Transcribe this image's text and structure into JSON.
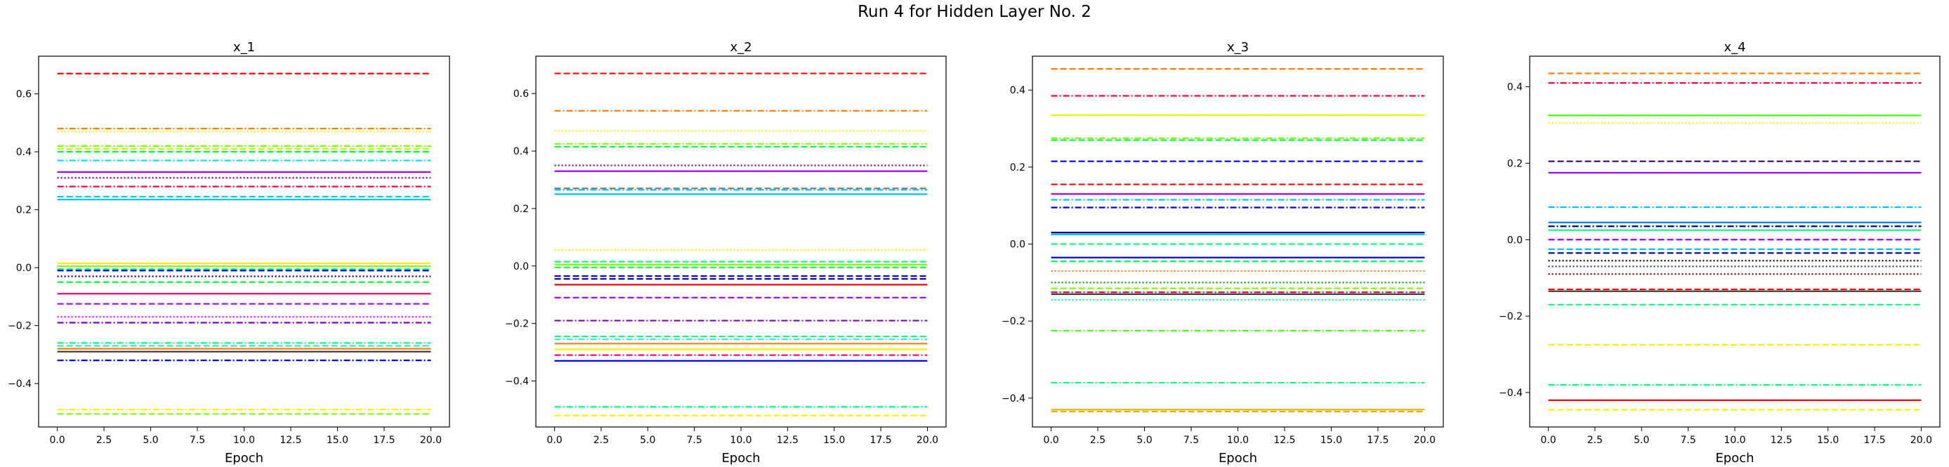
{
  "figure": {
    "title": "Run 4 for Hidden Layer No. 2"
  },
  "chart_data": [
    {
      "type": "line",
      "title": "x_1",
      "xlabel": "Epoch",
      "ylabel": "",
      "x_range": [
        0,
        20
      ],
      "xlim": [
        -1,
        21
      ],
      "ylim": [
        -0.55,
        0.73
      ],
      "xticks": [
        0.0,
        2.5,
        5.0,
        7.5,
        10.0,
        12.5,
        15.0,
        17.5,
        20.0
      ],
      "xtick_labels": [
        "0.0",
        "2.5",
        "5.0",
        "7.5",
        "10.0",
        "12.5",
        "15.0",
        "17.5",
        "20.0"
      ],
      "yticks": [
        -0.4,
        -0.2,
        0.0,
        0.2,
        0.4,
        0.6
      ],
      "ytick_labels": [
        "−0.4",
        "−0.2",
        "0.0",
        "0.2",
        "0.4",
        "0.6"
      ],
      "grid": false,
      "series": [
        {
          "value": 0.67,
          "color": "#ff0000",
          "dash": "dashed"
        },
        {
          "value": 0.48,
          "color": "#ff8000",
          "dash": "dashdot"
        },
        {
          "value": 0.47,
          "color": "#ffee00",
          "dash": "dotted"
        },
        {
          "value": 0.42,
          "color": "#80ff00",
          "dash": "dashdot"
        },
        {
          "value": 0.41,
          "color": "#c0ff00",
          "dash": "dashed"
        },
        {
          "value": 0.4,
          "color": "#00ff40",
          "dash": "dashed"
        },
        {
          "value": 0.37,
          "color": "#00e0ff",
          "dash": "dashdot"
        },
        {
          "value": 0.33,
          "color": "#a000ff",
          "dash": "solid"
        },
        {
          "value": 0.31,
          "color": "#800080",
          "dash": "dotted"
        },
        {
          "value": 0.28,
          "color": "#ff0040",
          "dash": "dashdot"
        },
        {
          "value": 0.245,
          "color": "#00c0ff",
          "dash": "dashed"
        },
        {
          "value": 0.235,
          "color": "#00bfff",
          "dash": "solid"
        },
        {
          "value": 0.015,
          "color": "#ffee00",
          "dash": "solid"
        },
        {
          "value": 0.005,
          "color": "#80ff00",
          "dash": "solid"
        },
        {
          "value": -0.005,
          "color": "#00ff80",
          "dash": "dashed"
        },
        {
          "value": -0.01,
          "color": "#0000ff",
          "dash": "dashed"
        },
        {
          "value": -0.03,
          "color": "#000080",
          "dash": "dotted"
        },
        {
          "value": -0.05,
          "color": "#00ff40",
          "dash": "dashed"
        },
        {
          "value": -0.09,
          "color": "#ff0060",
          "dash": "solid"
        },
        {
          "value": -0.125,
          "color": "#a000ff",
          "dash": "dashed"
        },
        {
          "value": -0.17,
          "color": "#ff00ff",
          "dash": "dotted"
        },
        {
          "value": -0.19,
          "color": "#8000c0",
          "dash": "dashdot"
        },
        {
          "value": -0.26,
          "color": "#00ff80",
          "dash": "dashdot"
        },
        {
          "value": -0.27,
          "color": "#40e0d0",
          "dash": "dashed"
        },
        {
          "value": -0.28,
          "color": "#ff8000",
          "dash": "solid"
        },
        {
          "value": -0.29,
          "color": "#404040",
          "dash": "solid"
        },
        {
          "value": -0.32,
          "color": "#0000ff",
          "dash": "dashdot"
        },
        {
          "value": -0.49,
          "color": "#ffee00",
          "dash": "dashdot"
        },
        {
          "value": -0.505,
          "color": "#80ff00",
          "dash": "dashed"
        }
      ]
    },
    {
      "type": "line",
      "title": "x_2",
      "xlabel": "Epoch",
      "ylabel": "",
      "x_range": [
        0,
        20
      ],
      "xlim": [
        -1,
        21
      ],
      "ylim": [
        -0.56,
        0.73
      ],
      "xticks": [
        0.0,
        2.5,
        5.0,
        7.5,
        10.0,
        12.5,
        15.0,
        17.5,
        20.0
      ],
      "xtick_labels": [
        "0.0",
        "2.5",
        "5.0",
        "7.5",
        "10.0",
        "12.5",
        "15.0",
        "17.5",
        "20.0"
      ],
      "yticks": [
        -0.4,
        -0.2,
        0.0,
        0.2,
        0.4,
        0.6
      ],
      "ytick_labels": [
        "−0.4",
        "−0.2",
        "0.0",
        "0.2",
        "0.4",
        "0.6"
      ],
      "grid": false,
      "series": [
        {
          "value": 0.67,
          "color": "#ff0000",
          "dash": "dashed"
        },
        {
          "value": 0.54,
          "color": "#ff8000",
          "dash": "dashdot"
        },
        {
          "value": 0.47,
          "color": "#ffee00",
          "dash": "dotted"
        },
        {
          "value": 0.425,
          "color": "#80ff00",
          "dash": "dashdot"
        },
        {
          "value": 0.415,
          "color": "#00ff40",
          "dash": "dashed"
        },
        {
          "value": 0.35,
          "color": "#800080",
          "dash": "dotted"
        },
        {
          "value": 0.33,
          "color": "#a000ff",
          "dash": "solid"
        },
        {
          "value": 0.27,
          "color": "#808080",
          "dash": "dashed"
        },
        {
          "value": 0.265,
          "color": "#00c0ff",
          "dash": "dashdot"
        },
        {
          "value": 0.25,
          "color": "#00bfff",
          "dash": "solid"
        },
        {
          "value": 0.055,
          "color": "#ffee00",
          "dash": "dotted"
        },
        {
          "value": 0.015,
          "color": "#00ff80",
          "dash": "dashed"
        },
        {
          "value": 0.005,
          "color": "#80ff00",
          "dash": "solid"
        },
        {
          "value": -0.005,
          "color": "#00ff40",
          "dash": "dashed"
        },
        {
          "value": -0.035,
          "color": "#0000ff",
          "dash": "dashed"
        },
        {
          "value": -0.045,
          "color": "#000080",
          "dash": "dashed"
        },
        {
          "value": -0.065,
          "color": "#ff0000",
          "dash": "solid"
        },
        {
          "value": -0.11,
          "color": "#a000ff",
          "dash": "dashed"
        },
        {
          "value": -0.19,
          "color": "#8000c0",
          "dash": "dashdot"
        },
        {
          "value": -0.245,
          "color": "#00ff80",
          "dash": "dashed"
        },
        {
          "value": -0.255,
          "color": "#40e0d0",
          "dash": "dashdot"
        },
        {
          "value": -0.27,
          "color": "#ff8000",
          "dash": "solid"
        },
        {
          "value": -0.29,
          "color": "#ffee00",
          "dash": "solid"
        },
        {
          "value": -0.31,
          "color": "#ff0060",
          "dash": "dashdot"
        },
        {
          "value": -0.33,
          "color": "#0000ff",
          "dash": "solid"
        },
        {
          "value": -0.49,
          "color": "#00ff80",
          "dash": "dashdot"
        },
        {
          "value": -0.52,
          "color": "#ffee00",
          "dash": "dashed"
        }
      ]
    },
    {
      "type": "line",
      "title": "x_3",
      "xlabel": "Epoch",
      "ylabel": "",
      "x_range": [
        0,
        20
      ],
      "xlim": [
        -1,
        21
      ],
      "ylim": [
        -0.475,
        0.488
      ],
      "xticks": [
        0.0,
        2.5,
        5.0,
        7.5,
        10.0,
        12.5,
        15.0,
        17.5,
        20.0
      ],
      "xtick_labels": [
        "0.0",
        "2.5",
        "5.0",
        "7.5",
        "10.0",
        "12.5",
        "15.0",
        "17.5",
        "20.0"
      ],
      "yticks": [
        -0.4,
        -0.2,
        0.0,
        0.2,
        0.4
      ],
      "ytick_labels": [
        "−0.4",
        "−0.2",
        "0.0",
        "0.2",
        "0.4"
      ],
      "grid": false,
      "series": [
        {
          "value": 0.455,
          "color": "#ff8000",
          "dash": "dashed"
        },
        {
          "value": 0.385,
          "color": "#ff0040",
          "dash": "dashdot"
        },
        {
          "value": 0.335,
          "color": "#e0ff00",
          "dash": "solid"
        },
        {
          "value": 0.275,
          "color": "#80ff00",
          "dash": "dashdot"
        },
        {
          "value": 0.27,
          "color": "#00ff40",
          "dash": "dashed"
        },
        {
          "value": 0.215,
          "color": "#0000ff",
          "dash": "dashed"
        },
        {
          "value": 0.155,
          "color": "#ff0000",
          "dash": "dashed"
        },
        {
          "value": 0.13,
          "color": "#a000ff",
          "dash": "solid"
        },
        {
          "value": 0.115,
          "color": "#00c0ff",
          "dash": "dashdot"
        },
        {
          "value": 0.095,
          "color": "#0000c0",
          "dash": "dashdot"
        },
        {
          "value": 0.03,
          "color": "#000080",
          "dash": "solid"
        },
        {
          "value": 0.025,
          "color": "#00bfff",
          "dash": "solid"
        },
        {
          "value": 0.0,
          "color": "#00ff80",
          "dash": "dashed"
        },
        {
          "value": -0.035,
          "color": "#0000ff",
          "dash": "solid"
        },
        {
          "value": -0.045,
          "color": "#00ff40",
          "dash": "dashed"
        },
        {
          "value": -0.07,
          "color": "#ff8000",
          "dash": "dotted"
        },
        {
          "value": -0.1,
          "color": "#00a000",
          "dash": "dotted"
        },
        {
          "value": -0.115,
          "color": "#80ff00",
          "dash": "dashed"
        },
        {
          "value": -0.125,
          "color": "#ff0040",
          "dash": "dashdot"
        },
        {
          "value": -0.13,
          "color": "#404040",
          "dash": "solid"
        },
        {
          "value": -0.145,
          "color": "#00ff80",
          "dash": "dotted"
        },
        {
          "value": -0.225,
          "color": "#40ff00",
          "dash": "dashdot"
        },
        {
          "value": -0.36,
          "color": "#00ff80",
          "dash": "dashdot"
        },
        {
          "value": -0.43,
          "color": "#ffa000",
          "dash": "solid"
        },
        {
          "value": -0.435,
          "color": "#c0c000",
          "dash": "dashed"
        }
      ]
    },
    {
      "type": "line",
      "title": "x_4",
      "xlabel": "Epoch",
      "ylabel": "",
      "x_range": [
        0,
        20
      ],
      "xlim": [
        -1,
        21
      ],
      "ylim": [
        -0.49,
        0.48
      ],
      "xticks": [
        0.0,
        2.5,
        5.0,
        7.5,
        10.0,
        12.5,
        15.0,
        17.5,
        20.0
      ],
      "xtick_labels": [
        "0.0",
        "2.5",
        "5.0",
        "7.5",
        "10.0",
        "12.5",
        "15.0",
        "17.5",
        "20.0"
      ],
      "yticks": [
        -0.4,
        -0.2,
        0.0,
        0.2,
        0.4
      ],
      "ytick_labels": [
        "−0.4",
        "−0.2",
        "0.0",
        "0.2",
        "0.4"
      ],
      "grid": false,
      "series": [
        {
          "value": 0.435,
          "color": "#ff8000",
          "dash": "dashed"
        },
        {
          "value": 0.41,
          "color": "#ff0040",
          "dash": "dashdot"
        },
        {
          "value": 0.325,
          "color": "#40ff00",
          "dash": "solid"
        },
        {
          "value": 0.305,
          "color": "#ffee00",
          "dash": "dotted"
        },
        {
          "value": 0.205,
          "color": "#400080",
          "dash": "dashed"
        },
        {
          "value": 0.175,
          "color": "#a000ff",
          "dash": "solid"
        },
        {
          "value": 0.085,
          "color": "#00c0ff",
          "dash": "dashdot"
        },
        {
          "value": 0.045,
          "color": "#0080ff",
          "dash": "solid"
        },
        {
          "value": 0.035,
          "color": "#000080",
          "dash": "dashdot"
        },
        {
          "value": 0.025,
          "color": "#00ff80",
          "dash": "solid"
        },
        {
          "value": 0.0,
          "color": "#a000ff",
          "dash": "dashed"
        },
        {
          "value": -0.025,
          "color": "#00c0ff",
          "dash": "dashed"
        },
        {
          "value": -0.035,
          "color": "#000080",
          "dash": "dashed"
        },
        {
          "value": -0.055,
          "color": "#000000",
          "dash": "dotted"
        },
        {
          "value": -0.07,
          "color": "#404040",
          "dash": "dotted"
        },
        {
          "value": -0.09,
          "color": "#800000",
          "dash": "dotted"
        },
        {
          "value": -0.13,
          "color": "#ff0000",
          "dash": "dashed"
        },
        {
          "value": -0.135,
          "color": "#404040",
          "dash": "solid"
        },
        {
          "value": -0.17,
          "color": "#00ff80",
          "dash": "dashed"
        },
        {
          "value": -0.275,
          "color": "#ffee00",
          "dash": "dashed"
        },
        {
          "value": -0.38,
          "color": "#00ff80",
          "dash": "dashdot"
        },
        {
          "value": -0.42,
          "color": "#ff0000",
          "dash": "solid"
        },
        {
          "value": -0.445,
          "color": "#ffee00",
          "dash": "dashed"
        }
      ]
    }
  ]
}
